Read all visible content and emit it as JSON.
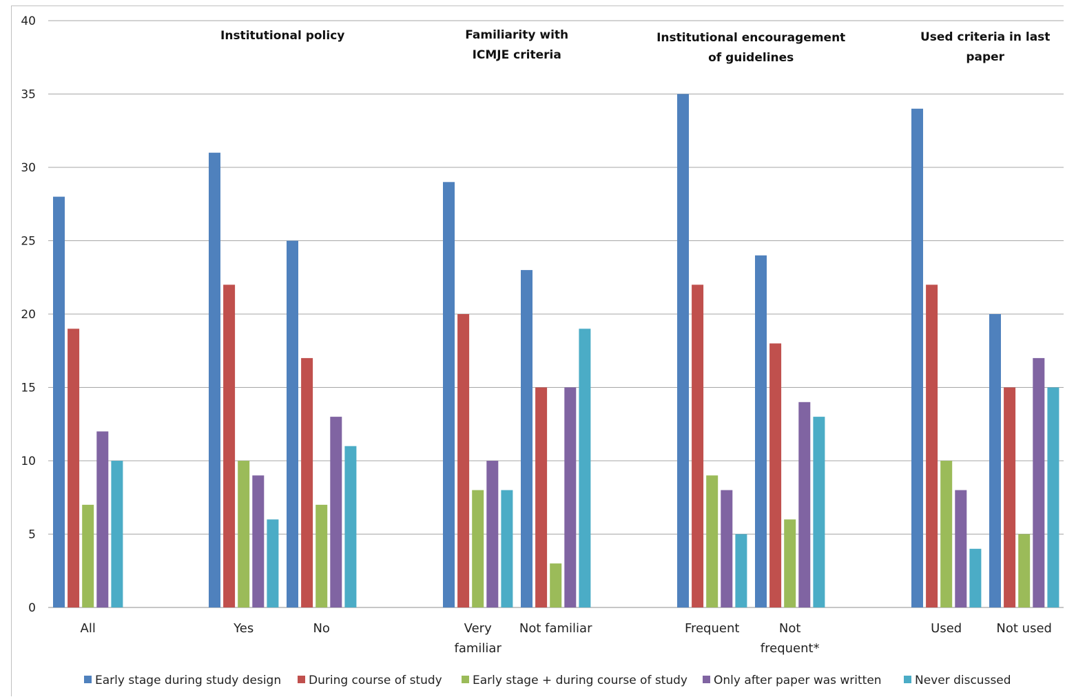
{
  "chart_data": {
    "type": "bar",
    "title": "",
    "xlabel": "",
    "ylabel": "",
    "ylim": [
      0,
      40
    ],
    "yticks": [
      0,
      5,
      10,
      15,
      20,
      25,
      30,
      35,
      40
    ],
    "grid": true,
    "legend_position": "bottom",
    "categories": [
      [
        "All"
      ],
      [
        "Yes"
      ],
      [
        "No"
      ],
      [
        "Very",
        "familiar"
      ],
      [
        "Not familiar"
      ],
      [
        "Frequent"
      ],
      [
        "Not",
        "frequent*"
      ],
      [
        "Used"
      ],
      [
        "Not used"
      ]
    ],
    "group_labels": [
      {
        "lines": [
          "Institutional policy"
        ],
        "categories": [
          1,
          2
        ]
      },
      {
        "lines": [
          "Familiarity with",
          "ICMJE criteria"
        ],
        "categories": [
          3,
          4
        ]
      },
      {
        "lines": [
          "Institutional encouragement",
          "of guidelines"
        ],
        "categories": [
          5,
          6
        ]
      },
      {
        "lines": [
          "Used criteria in last",
          "paper"
        ],
        "categories": [
          7,
          8
        ]
      }
    ],
    "series": [
      {
        "name": "Early stage during study design",
        "color": "#4f81bd",
        "values": [
          28,
          31,
          25,
          29,
          23,
          35,
          24,
          34,
          20
        ]
      },
      {
        "name": "During course of study",
        "color": "#c0504d",
        "values": [
          19,
          22,
          17,
          20,
          15,
          22,
          18,
          22,
          15
        ]
      },
      {
        "name": "Early stage + during course of study",
        "color": "#9bbb59",
        "values": [
          7,
          10,
          7,
          8,
          3,
          9,
          6,
          10,
          5
        ]
      },
      {
        "name": "Only after paper was written",
        "color": "#8064a2",
        "values": [
          12,
          9,
          13,
          10,
          15,
          8,
          14,
          8,
          17
        ]
      },
      {
        "name": "Never discussed",
        "color": "#4bacc6",
        "values": [
          10,
          6,
          11,
          8,
          19,
          5,
          13,
          4,
          15
        ]
      }
    ]
  }
}
